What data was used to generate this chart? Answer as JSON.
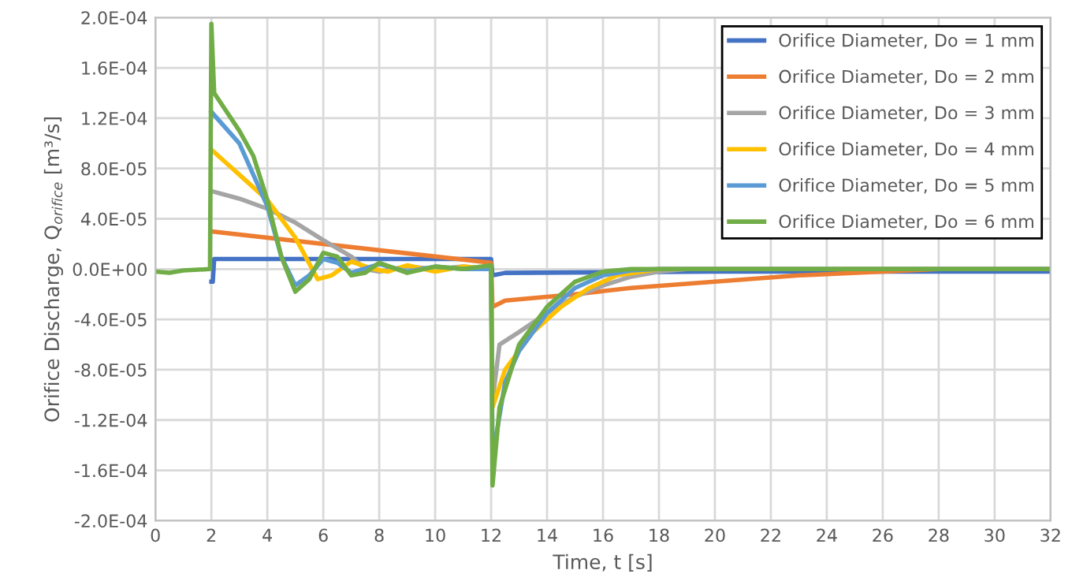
{
  "chart_data": {
    "type": "line",
    "xlabel": "Time, t [s]",
    "ylabel": "Orifice Discharge, Q$_{orifice}$ [m³/s]",
    "xlim": [
      0,
      32
    ],
    "xticks": [
      0,
      2,
      4,
      6,
      8,
      10,
      12,
      14,
      16,
      18,
      20,
      22,
      24,
      26,
      28,
      30,
      32
    ],
    "ylim": [
      -0.0002,
      0.0002
    ],
    "yticks": [
      {
        "value": -0.0002,
        "label": "-2.0E-04"
      },
      {
        "value": -0.00016,
        "label": "-1.6E-04"
      },
      {
        "value": -0.00012,
        "label": "-1.2E-04"
      },
      {
        "value": -8e-05,
        "label": "-8.0E-05"
      },
      {
        "value": -4e-05,
        "label": "-4.0E-05"
      },
      {
        "value": 0,
        "label": "0.0E+00"
      },
      {
        "value": 4e-05,
        "label": "4.0E-05"
      },
      {
        "value": 8e-05,
        "label": "8.0E-05"
      },
      {
        "value": 0.00012,
        "label": "1.2E-04"
      },
      {
        "value": 0.00016,
        "label": "1.6E-04"
      },
      {
        "value": 0.0002,
        "label": "2.0E-04"
      }
    ],
    "grid": true,
    "legend": "top right",
    "marker": "none",
    "line_style": "solid",
    "series": [
      {
        "name": "Orifice Diameter, Do = 1 mm",
        "color": "#4472c4",
        "x": [
          2,
          2.05,
          2.1,
          12,
          12.05,
          12.5,
          20,
          32
        ],
        "values": [
          -1e-05,
          -1e-05,
          8e-06,
          8e-06,
          -5e-06,
          -3e-06,
          -2e-06,
          -2e-06
        ]
      },
      {
        "name": "Orifice Diameter, Do = 2 mm",
        "color": "#ed7d31",
        "x": [
          2,
          12,
          12.05,
          12.5,
          15,
          17,
          20,
          23,
          26,
          28,
          32
        ],
        "values": [
          3e-05,
          5e-06,
          -3e-05,
          -2.5e-05,
          -2e-05,
          -1.5e-05,
          -1e-05,
          -5e-06,
          -2e-06,
          0,
          0
        ]
      },
      {
        "name": "Orifice Diameter, Do = 3 mm",
        "color": "#a5a5a5",
        "x": [
          2,
          3,
          4,
          5,
          6,
          7,
          7.5,
          8,
          9,
          10,
          11,
          12,
          12.05,
          12.3,
          13,
          14,
          15,
          16,
          17,
          18,
          19,
          32
        ],
        "values": [
          6.2e-05,
          5.6e-05,
          4.8e-05,
          3.7e-05,
          2.3e-05,
          1e-05,
          0,
          -2e-06,
          2e-06,
          0,
          2e-06,
          0,
          -0.000105,
          -6e-05,
          -5e-05,
          -3.5e-05,
          -2.2e-05,
          -1.3e-05,
          -6e-06,
          -2e-06,
          0,
          0
        ]
      },
      {
        "name": "Orifice Diameter, Do = 4 mm",
        "color": "#ffc000",
        "x": [
          2,
          2.5,
          3,
          4,
          5,
          5.8,
          6.3,
          7,
          7.8,
          8.3,
          9,
          10,
          11,
          12,
          12.05,
          12.5,
          13.5,
          14.5,
          15.5,
          16.5,
          18,
          32
        ],
        "values": [
          9.5e-05,
          8.5e-05,
          7.5e-05,
          5.5e-05,
          2.5e-05,
          -8e-06,
          -5e-06,
          6e-06,
          0,
          -2e-06,
          3e-06,
          -2e-06,
          2e-06,
          0,
          -0.00011,
          -8e-05,
          -5e-05,
          -3e-05,
          -1.5e-05,
          -5e-06,
          0,
          0
        ]
      },
      {
        "name": "Orifice Diameter, Do = 5 mm",
        "color": "#5b9bd5",
        "x": [
          2,
          3,
          4,
          4.5,
          5,
          5.5,
          6,
          6.5,
          7,
          8,
          9,
          10,
          11,
          12,
          12.05,
          12.5,
          13,
          14,
          15,
          16,
          17,
          18,
          32
        ],
        "values": [
          0.000125,
          0.0001,
          5e-05,
          1e-05,
          -1.3e-05,
          -5e-06,
          8e-06,
          5e-06,
          -3e-06,
          4e-06,
          -2e-06,
          2e-06,
          0,
          0,
          -0.00015,
          -9e-05,
          -6.5e-05,
          -3.5e-05,
          -1.5e-05,
          -5e-06,
          -1e-06,
          0,
          0
        ]
      },
      {
        "name": "Orifice Diameter, Do = 6 mm",
        "color": "#70ad47",
        "x": [
          0,
          0.5,
          1,
          1.95,
          2,
          2.1,
          3,
          3.5,
          4,
          4.5,
          5,
          5.5,
          6,
          6.5,
          7,
          7.5,
          8,
          9,
          10,
          11,
          12,
          12.05,
          12.3,
          13,
          14,
          15,
          16,
          17,
          32
        ],
        "values": [
          -2e-06,
          -3e-06,
          -1e-06,
          0,
          0.000195,
          0.00014,
          0.00011,
          9e-05,
          5.5e-05,
          1e-05,
          -1.8e-05,
          -8e-06,
          1.3e-05,
          1e-05,
          -5e-06,
          -3e-06,
          5e-06,
          -3e-06,
          2e-06,
          0,
          3e-06,
          -0.000172,
          -0.00011,
          -6e-05,
          -3e-05,
          -1e-05,
          -2e-06,
          0,
          0
        ]
      }
    ]
  }
}
